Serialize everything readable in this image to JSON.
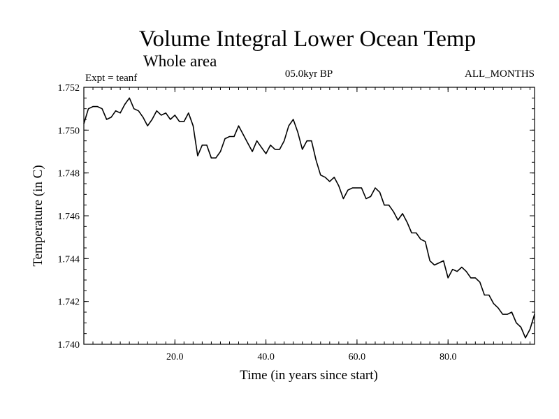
{
  "chart_data": {
    "type": "line",
    "title": "Volume Integral Lower Ocean Temp",
    "subtitle": "Whole area",
    "annotations": {
      "experiment": "Expt = teanf",
      "period": "05.0kyr BP",
      "months": "ALL_MONTHS"
    },
    "xlabel": "Time (in years since start)",
    "ylabel": "Temperature (in C)",
    "xlim": [
      0,
      99
    ],
    "ylim": [
      1.74,
      1.752
    ],
    "xticks": [
      20,
      40,
      60,
      80
    ],
    "xtick_labels": [
      "20.0",
      "40.0",
      "60.0",
      "80.0"
    ],
    "yticks": [
      1.74,
      1.742,
      1.744,
      1.746,
      1.748,
      1.75,
      1.752
    ],
    "ytick_labels": [
      "1.740",
      "1.742",
      "1.744",
      "1.746",
      "1.748",
      "1.750",
      "1.752"
    ],
    "x_minor_step": 2,
    "y_minor_step": 0.0005,
    "series": [
      {
        "name": "Volume Integral Lower Ocean Temp",
        "x": [
          0,
          1,
          2,
          3,
          4,
          5,
          6,
          7,
          8,
          9,
          10,
          11,
          12,
          13,
          14,
          15,
          16,
          17,
          18,
          19,
          20,
          21,
          22,
          23,
          24,
          25,
          26,
          27,
          28,
          29,
          30,
          31,
          32,
          33,
          34,
          35,
          36,
          37,
          38,
          39,
          40,
          41,
          42,
          43,
          44,
          45,
          46,
          47,
          48,
          49,
          50,
          51,
          52,
          53,
          54,
          55,
          56,
          57,
          58,
          59,
          60,
          61,
          62,
          63,
          64,
          65,
          66,
          67,
          68,
          69,
          70,
          71,
          72,
          73,
          74,
          75,
          76,
          77,
          78,
          79,
          80,
          81,
          82,
          83,
          84,
          85,
          86,
          87,
          88,
          89,
          90,
          91,
          92,
          93,
          94,
          95,
          96,
          97,
          98,
          99
        ],
        "values": [
          1.7503,
          1.751,
          1.7511,
          1.7511,
          1.751,
          1.7505,
          1.7506,
          1.7509,
          1.7508,
          1.7512,
          1.7515,
          1.751,
          1.7509,
          1.7506,
          1.7502,
          1.7505,
          1.7509,
          1.7507,
          1.7508,
          1.7505,
          1.7507,
          1.7504,
          1.7504,
          1.7508,
          1.7502,
          1.7488,
          1.7493,
          1.7493,
          1.7487,
          1.7487,
          1.749,
          1.7496,
          1.7497,
          1.7497,
          1.7502,
          1.7498,
          1.7494,
          1.749,
          1.7495,
          1.7492,
          1.7489,
          1.7493,
          1.7491,
          1.7491,
          1.7495,
          1.7502,
          1.7505,
          1.7499,
          1.7491,
          1.7495,
          1.7495,
          1.7486,
          1.7479,
          1.7478,
          1.7476,
          1.7478,
          1.7474,
          1.7468,
          1.7472,
          1.7473,
          1.7473,
          1.7473,
          1.7468,
          1.7469,
          1.7473,
          1.7471,
          1.7465,
          1.7465,
          1.7462,
          1.7458,
          1.7461,
          1.7457,
          1.7452,
          1.7452,
          1.7449,
          1.7448,
          1.7439,
          1.7437,
          1.7438,
          1.7439,
          1.7431,
          1.7435,
          1.7434,
          1.7436,
          1.7434,
          1.7431,
          1.7431,
          1.7429,
          1.7423,
          1.7423,
          1.7419,
          1.7417,
          1.7414,
          1.7414,
          1.7415,
          1.741,
          1.7408,
          1.7403,
          1.7407,
          1.7414
        ]
      }
    ]
  }
}
